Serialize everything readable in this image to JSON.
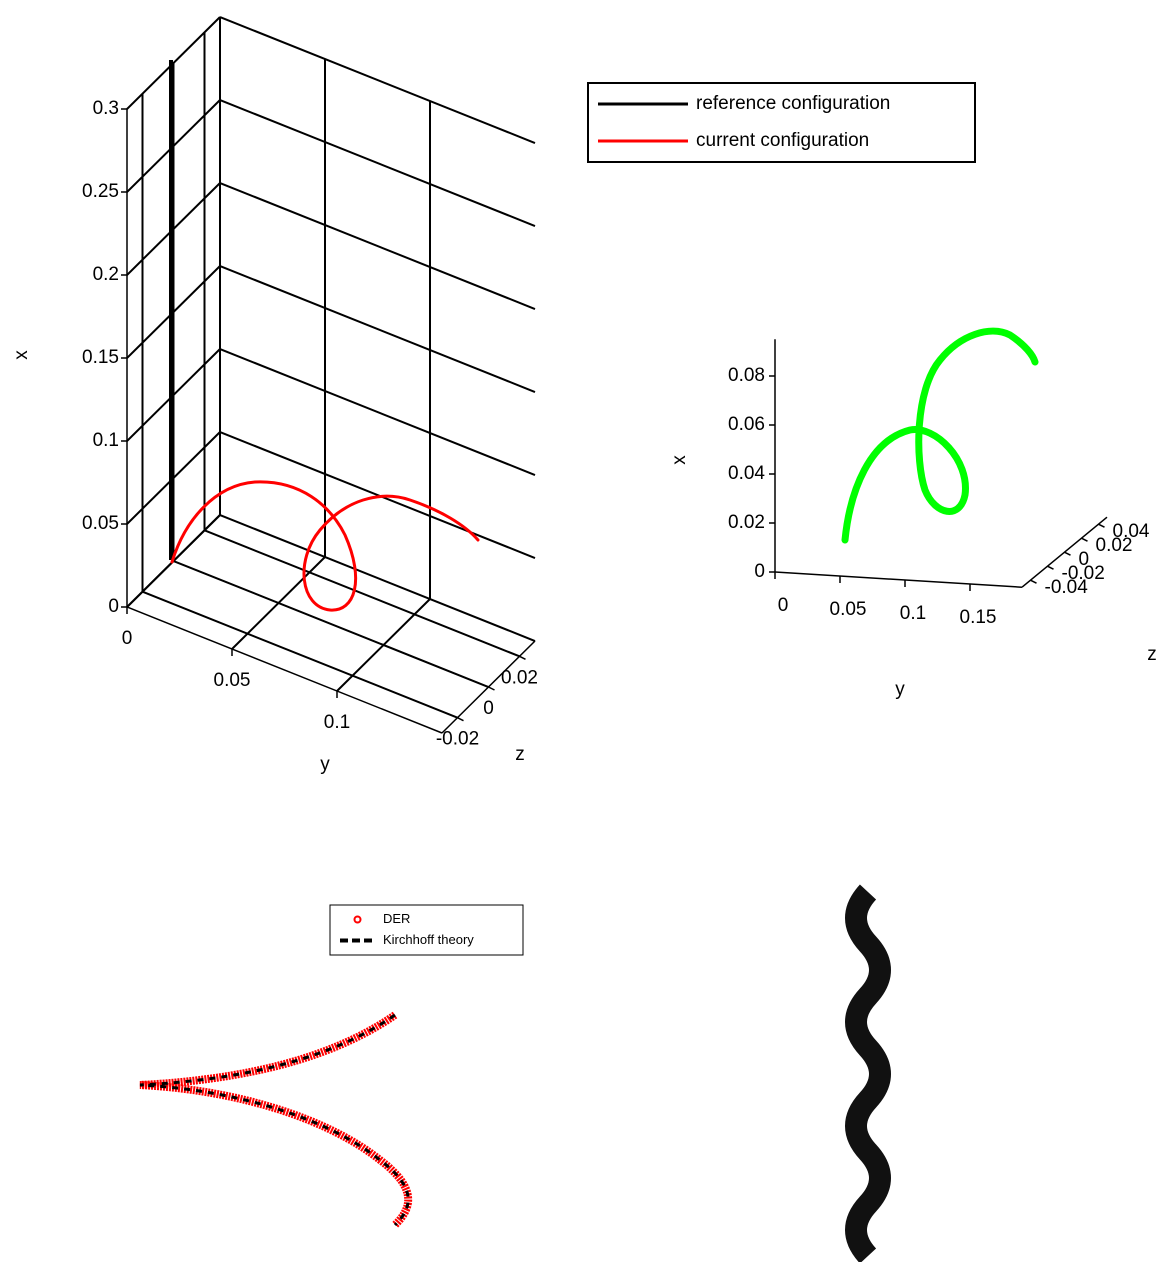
{
  "chart_data": [
    {
      "type": "line3d",
      "xlabel": "x",
      "ylabel": "y",
      "zlabel": "z",
      "xlim": [
        0,
        0.3
      ],
      "xticks": [
        0,
        0.05,
        0.1,
        0.15,
        0.2,
        0.25,
        0.3
      ],
      "ylim": [
        0,
        0.15
      ],
      "yticks": [
        0,
        0.05,
        0.1
      ],
      "zlim": [
        -0.03,
        0.03
      ],
      "zticks": [
        -0.02,
        0,
        0.02
      ],
      "grid": true,
      "series": [
        {
          "name": "reference configuration",
          "color": "#000000"
        },
        {
          "name": "current configuration",
          "color": "#ff0000"
        }
      ]
    },
    {
      "type": "line3d",
      "xlabel": "x",
      "ylabel": "y",
      "zlabel": "z",
      "xlim": [
        0,
        0.095
      ],
      "xticks": [
        0,
        0.02,
        0.04,
        0.06,
        0.08
      ],
      "ylim": [
        0,
        0.19
      ],
      "yticks": [
        0,
        0.05,
        0.1,
        0.15
      ],
      "zlim": [
        -0.05,
        0.05
      ],
      "zticks": [
        -0.04,
        -0.02,
        0,
        0.02,
        0.04
      ],
      "grid": false,
      "color": "#00ff00"
    },
    {
      "type": "line",
      "series": [
        {
          "name": "DER",
          "color": "#ff0000"
        },
        {
          "name": "Kirchhoff theory",
          "color": "#000000"
        }
      ]
    }
  ]
}
